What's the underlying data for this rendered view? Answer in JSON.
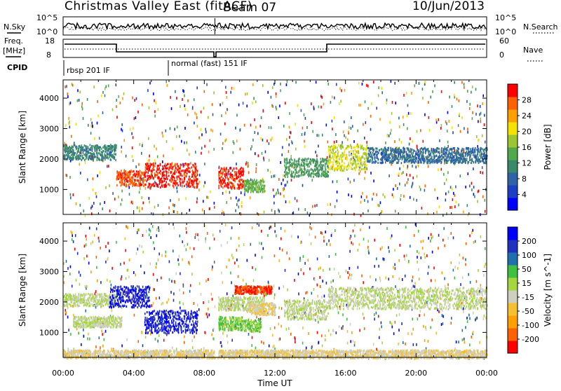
{
  "header": {
    "title": "Christmas Valley East (fitACF)",
    "beam": "Beam 07",
    "date": "10/Jun/2013"
  },
  "param_panels": {
    "nsky": {
      "left_label": "N.Sky",
      "left_ticks": [
        "10^5",
        "10^0"
      ],
      "right_label": "N.Search",
      "right_ticks": [
        "10^5",
        "10^0"
      ]
    },
    "freq": {
      "left_label_1": "Freq.",
      "left_label_2": "[MHz]",
      "left_ticks": [
        "18",
        "8"
      ],
      "right_label": "Nave",
      "right_ticks": [
        "60",
        "0"
      ]
    },
    "cpid": {
      "label": "CPID",
      "segments": [
        "rbsp 201 IF",
        "normal (fast) 151 IF"
      ]
    }
  },
  "chart_data": [
    {
      "type": "heatmap",
      "title": "Power",
      "quantity": "Power",
      "ylabel": "Slant Range [km]",
      "xlabel": "",
      "xlim": [
        "00:00",
        "24:00"
      ],
      "ylim": [
        180,
        4600
      ],
      "yticks": [
        "1000",
        "2000",
        "3000",
        "4000"
      ],
      "colorbar": {
        "label": "Power [dB]",
        "range": [
          0,
          30
        ],
        "ticks": [
          "28",
          "24",
          "20",
          "16",
          "12",
          "8",
          "4"
        ],
        "colors": [
          "#0000ff",
          "#1c3fc4",
          "#2f63a5",
          "#3a8a6a",
          "#51a84d",
          "#9cc532",
          "#f4e200",
          "#ffa000",
          "#ff6000",
          "#ff0000"
        ]
      },
      "features": [
        {
          "start_hour": 0.0,
          "end_hour": 3.0,
          "range_start_km": 2000,
          "range_end_km": 2500,
          "level": 10
        },
        {
          "start_hour": 3.0,
          "end_hour": 4.6,
          "range_start_km": 1150,
          "range_end_km": 1650,
          "level": 26
        },
        {
          "start_hour": 4.6,
          "end_hour": 7.6,
          "range_start_km": 1100,
          "range_end_km": 1900,
          "level": 28
        },
        {
          "start_hour": 8.7,
          "end_hour": 10.2,
          "range_start_km": 1050,
          "range_end_km": 1750,
          "level": 28
        },
        {
          "start_hour": 10.2,
          "end_hour": 11.4,
          "range_start_km": 950,
          "range_end_km": 1350,
          "level": 14
        },
        {
          "start_hour": 12.5,
          "end_hour": 15.0,
          "range_start_km": 1450,
          "range_end_km": 2050,
          "level": 12
        },
        {
          "start_hour": 15.0,
          "end_hour": 17.2,
          "range_start_km": 1650,
          "range_end_km": 2500,
          "level": 18
        },
        {
          "start_hour": 17.2,
          "end_hour": 24.0,
          "range_start_km": 1900,
          "range_end_km": 2400,
          "level": 8
        }
      ]
    },
    {
      "type": "heatmap",
      "title": "Velocity",
      "quantity": "Velocity",
      "ylabel": "Slant Range [km]",
      "xlabel": "Time UT",
      "xlim": [
        "00:00",
        "24:00"
      ],
      "xticks": [
        "00:00",
        "04:00",
        "08:00",
        "12:00",
        "16:00",
        "20:00",
        "00:00"
      ],
      "ylim": [
        180,
        4600
      ],
      "yticks": [
        "1000",
        "2000",
        "3000",
        "4000"
      ],
      "colorbar": {
        "label": "Velocity [m s^-1]",
        "range": [
          -250,
          250
        ],
        "ticks": [
          "200",
          "100",
          "50",
          "15",
          "-15",
          "-50",
          "-100",
          "-200"
        ],
        "colors": [
          "#ff0000",
          "#ff6000",
          "#ffa000",
          "#f4c030",
          "#cfcfc0",
          "#a5d640",
          "#40c040",
          "#2070b0",
          "#2030c0",
          "#0000ff"
        ]
      },
      "features": [
        {
          "start_hour": 0.0,
          "end_hour": 3.0,
          "range_start_km": 1900,
          "range_end_km": 2300,
          "level": 0
        },
        {
          "start_hour": 2.6,
          "end_hour": 4.9,
          "range_start_km": 1850,
          "range_end_km": 2550,
          "level": 200
        },
        {
          "start_hour": 0.5,
          "end_hour": 3.3,
          "range_start_km": 1200,
          "range_end_km": 1550,
          "level": 0
        },
        {
          "start_hour": 4.6,
          "end_hour": 7.6,
          "range_start_km": 1000,
          "range_end_km": 1750,
          "level": 200
        },
        {
          "start_hour": 8.7,
          "end_hour": 10.2,
          "range_start_km": 1100,
          "range_end_km": 1550,
          "level": 50
        },
        {
          "start_hour": 10.2,
          "end_hour": 11.2,
          "range_start_km": 1050,
          "range_end_km": 1450,
          "level": 50
        },
        {
          "start_hour": 8.7,
          "end_hour": 11.4,
          "range_start_km": 1750,
          "range_end_km": 2200,
          "level": 0
        },
        {
          "start_hour": 10.5,
          "end_hour": 12.0,
          "range_start_km": 1600,
          "range_end_km": 2000,
          "level": -50
        },
        {
          "start_hour": 9.7,
          "end_hour": 11.8,
          "range_start_km": 2300,
          "range_end_km": 2550,
          "level": -200
        },
        {
          "start_hour": 12.5,
          "end_hour": 15.0,
          "range_start_km": 1450,
          "range_end_km": 2100,
          "level": 0
        },
        {
          "start_hour": 15.0,
          "end_hour": 24.0,
          "range_start_km": 1800,
          "range_end_km": 2500,
          "level": 0
        },
        {
          "start_hour": 0.0,
          "end_hour": 24.0,
          "range_start_km": 180,
          "range_end_km": 450,
          "level": -40
        }
      ]
    }
  ]
}
